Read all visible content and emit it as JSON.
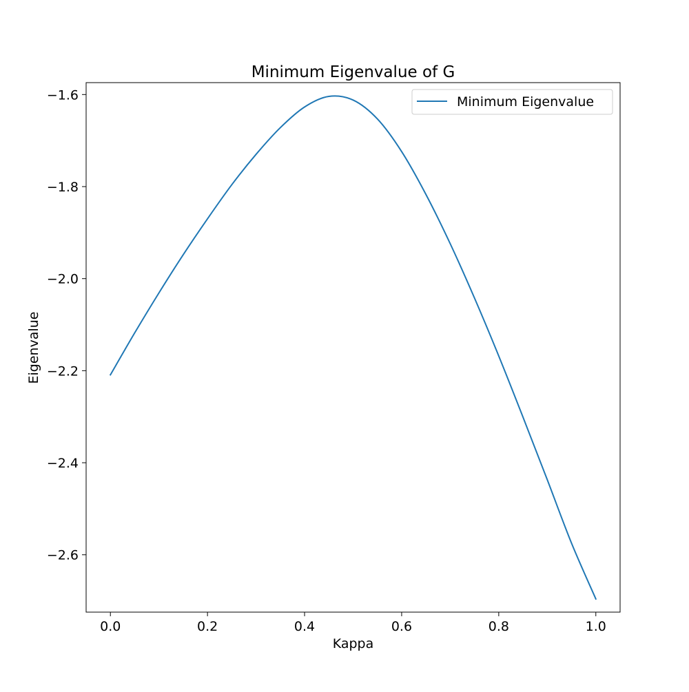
{
  "chart_data": {
    "type": "line",
    "title": "Minimum Eigenvalue of G",
    "xlabel": "Kappa",
    "ylabel": "Eigenvalue",
    "xlim": [
      -0.05,
      1.05
    ],
    "ylim": [
      -2.7246,
      -1.5741
    ],
    "xticks": [
      0.0,
      0.2,
      0.4,
      0.6,
      0.8,
      1.0
    ],
    "xtick_labels": [
      "0.0",
      "0.2",
      "0.4",
      "0.6",
      "0.8",
      "1.0"
    ],
    "yticks": [
      -1.6,
      -1.8,
      -2.0,
      -2.2,
      -2.4,
      -2.6
    ],
    "ytick_labels": [
      "−1.6",
      "−1.8",
      "−2.0",
      "−2.2",
      "−2.4",
      "−2.6"
    ],
    "grid": false,
    "legend_position": "upper right",
    "series": [
      {
        "name": "Minimum Eigenvalue",
        "color": "#1f77b4",
        "x": [
          0.0,
          0.05,
          0.1,
          0.15,
          0.2,
          0.25,
          0.3,
          0.35,
          0.4,
          0.45,
          0.5,
          0.55,
          0.6,
          0.65,
          0.7,
          0.75,
          0.8,
          0.85,
          0.9,
          0.95,
          1.0
        ],
        "y": [
          -2.209,
          -2.118,
          -2.031,
          -1.948,
          -1.87,
          -1.796,
          -1.73,
          -1.672,
          -1.627,
          -1.604,
          -1.612,
          -1.653,
          -1.724,
          -1.817,
          -1.924,
          -2.042,
          -2.168,
          -2.301,
          -2.437,
          -2.575,
          -2.696
        ]
      }
    ]
  }
}
